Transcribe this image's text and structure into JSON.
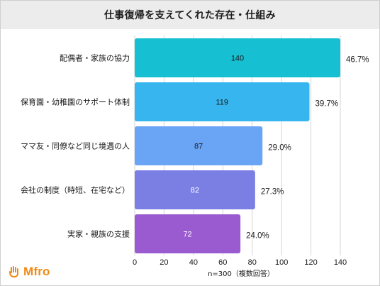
{
  "header": {
    "title": "仕事復帰を支えてくれた存在・仕組み"
  },
  "brand": {
    "name": "Mfro",
    "color": "#ef8a17"
  },
  "chart_data": {
    "type": "bar",
    "orientation": "horizontal",
    "title": "仕事復帰を支えてくれた存在・仕組み",
    "categories": [
      "配偶者・家族の協力",
      "保育園・幼稚園のサポート体制",
      "ママ友・同僚など同じ境遇の人",
      "会社の制度（時短、在宅など）",
      "実家・親族の支援"
    ],
    "values": [
      140,
      119,
      87,
      82,
      72
    ],
    "percent_labels": [
      "46.7%",
      "39.7%",
      "29.0%",
      "27.3%",
      "24.0%"
    ],
    "colors": [
      "#16c0d2",
      "#36b5ee",
      "#6aa4f5",
      "#7b7fe4",
      "#9b5bd0"
    ],
    "value_label_colors": [
      "#1a1a1a",
      "#1a1a1a",
      "#1a1a1a",
      "#ffffff",
      "#ffffff"
    ],
    "xlim": [
      0,
      140
    ],
    "xticks": [
      0,
      20,
      40,
      60,
      80,
      100,
      120,
      140
    ],
    "xlabel": "n=300（複数回答）",
    "grid": true
  }
}
